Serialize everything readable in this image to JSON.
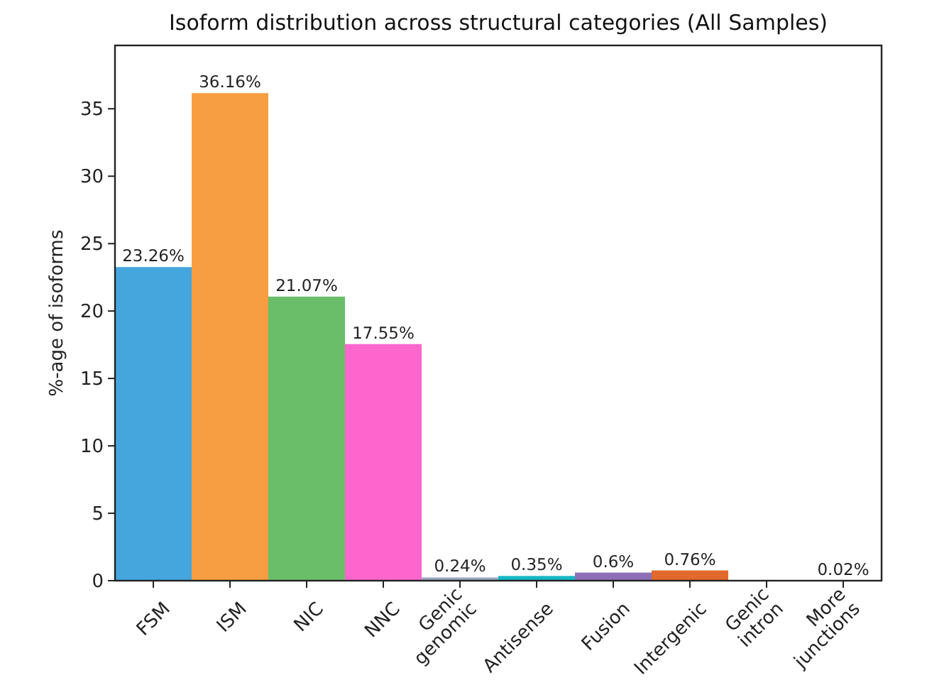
{
  "chart_data": {
    "type": "bar",
    "title": "Isoform distribution across structural categories (All Samples)",
    "ylabel": "%-age of isoforms",
    "categories": [
      "FSM",
      "ISM",
      "NIC",
      "NNC",
      "Genic\ngenomic",
      "Antisense",
      "Fusion",
      "Intergenic",
      "Genic\nintron",
      "More\njunctions"
    ],
    "values": [
      23.26,
      36.16,
      21.07,
      17.55,
      0.24,
      0.35,
      0.6,
      0.76,
      null,
      0.02
    ],
    "colors": [
      "#45a6dd",
      "#f79d42",
      "#6abe6a",
      "#fc66cd",
      "#a0a8c0",
      "#15b8c4",
      "#8f6eb8",
      "#e0692b",
      null,
      "#2f4f4f"
    ],
    "value_labels": [
      "23.26%",
      "36.16%",
      "21.07%",
      "17.55%",
      "0.24%",
      "0.35%",
      "0.6%",
      "0.76%",
      null,
      "0.02%"
    ],
    "ylim": [
      0,
      39.7
    ],
    "yticks": [
      0,
      5,
      10,
      15,
      20,
      25,
      30,
      35
    ]
  }
}
